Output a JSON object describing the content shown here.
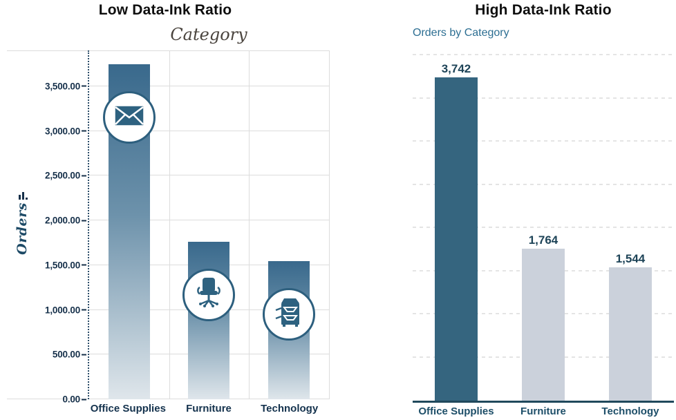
{
  "chart_data": [
    {
      "type": "bar",
      "title": "Low Data-Ink Ratio",
      "x_axis_title": "Category",
      "y_axis_title": "Orders",
      "categories": [
        "Office Supplies",
        "Furniture",
        "Technology"
      ],
      "values": [
        3742,
        1764,
        1544
      ],
      "y_tick_labels": [
        "3,500.00",
        "3,000.00",
        "2,500.00",
        "2,000.00",
        "1,500.00",
        "1,000.00",
        "500.00",
        "0.00"
      ],
      "y_tick_values": [
        3500,
        3000,
        2500,
        2000,
        1500,
        1000,
        500,
        0
      ],
      "gridline_values": [
        3500,
        3000,
        2500,
        2000,
        1500,
        1000,
        500
      ],
      "ylim": [
        0,
        3900
      ],
      "grid": "boxed plot area, solid light-gray horizontal and vertical gridlines, dotted y-axis",
      "legend": "none",
      "bar_style": "vertical gradient dark-teal to near-white with circular icon medallions",
      "icons": [
        "envelope-icon",
        "office-chair-icon",
        "copier-icon"
      ]
    },
    {
      "type": "bar",
      "title": "High Data-Ink Ratio",
      "subtitle": "Orders by Category",
      "categories": [
        "Office Supplies",
        "Furniture",
        "Technology"
      ],
      "values": [
        3742,
        1764,
        1544
      ],
      "value_labels": [
        "3,742",
        "1,764",
        "1,544"
      ],
      "gridline_values": [
        4000,
        3500,
        3000,
        2500,
        2000,
        1500,
        1000,
        500
      ],
      "ylim": [
        0,
        4000
      ],
      "grid": "horizontal dashed light-gray gridlines only, no y-axis labels, solid dark baseline",
      "legend": "none",
      "bar_colors": [
        "#35657F",
        "#CBD1DB",
        "#CBD1DB"
      ]
    }
  ],
  "colors": {
    "dark_teal_bar": "#35657F",
    "gradient_bar_top": "#39698C",
    "gradient_bar_bottom": "#DFE6EB",
    "light_gray_bar": "#CBD1DB",
    "tick_label_text": "#16304A",
    "data_label_text": "#1D4357",
    "subtitle_teal": "#2C6E92",
    "handwriting_gray": "#4A443E",
    "gridline_gray": "#DCDCDC",
    "baseline_dark": "#20495C",
    "title_black": "#0E0E0E"
  }
}
